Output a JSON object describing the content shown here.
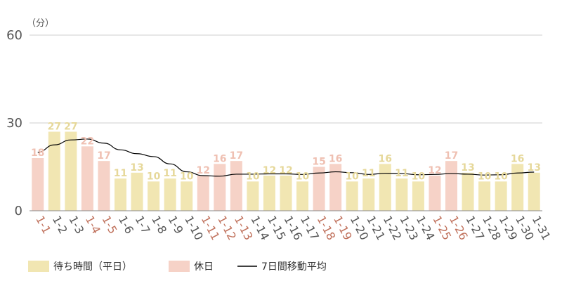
{
  "chart_data": {
    "type": "bar",
    "y_unit": "（分）",
    "ylim": [
      0,
      60
    ],
    "yticks": [
      0,
      30,
      60
    ],
    "grid": true,
    "legend_placement": "bottom-left",
    "categories": [
      "1-1",
      "1-2",
      "1-3",
      "1-4",
      "1-5",
      "1-6",
      "1-7",
      "1-8",
      "1-9",
      "1-10",
      "1-11",
      "1-12",
      "1-13",
      "1-14",
      "1-15",
      "1-16",
      "1-17",
      "1-18",
      "1-19",
      "1-20",
      "1-21",
      "1-22",
      "1-23",
      "1-24",
      "1-25",
      "1-26",
      "1-27",
      "1-28",
      "1-29",
      "1-30",
      "1-31"
    ],
    "series": [
      {
        "name": "待ち時間（平日）",
        "color": "#f1e6b2",
        "label_color": "#e6d89a"
      },
      {
        "name": "休日",
        "color": "#f6d2c7",
        "label_color": "#efc0b2"
      }
    ],
    "values": [
      18,
      27,
      27,
      22,
      17,
      11,
      13,
      10,
      11,
      10,
      12,
      16,
      17,
      10,
      12,
      12,
      10,
      15,
      16,
      10,
      11,
      16,
      11,
      10,
      12,
      17,
      13,
      10,
      10,
      16,
      13
    ],
    "holiday": [
      true,
      false,
      false,
      true,
      true,
      false,
      false,
      false,
      false,
      false,
      true,
      true,
      true,
      false,
      false,
      false,
      false,
      true,
      true,
      false,
      false,
      false,
      false,
      false,
      true,
      true,
      false,
      false,
      false,
      false,
      false
    ],
    "moving_average": {
      "name": "7日間移動平均",
      "color": "#000000",
      "values": [
        20.0,
        22.5,
        24.2,
        24.5,
        23.1,
        20.8,
        19.5,
        18.5,
        16.0,
        13.3,
        12.0,
        11.8,
        12.5,
        12.5,
        12.6,
        12.6,
        12.4,
        12.9,
        13.3,
        13.0,
        12.4,
        12.8,
        12.7,
        12.3,
        12.4,
        12.7,
        12.5,
        12.2,
        12.3,
        12.9,
        13.2
      ]
    },
    "colors": {
      "weekday_tick": "#555555",
      "holiday_tick": "#c0715c",
      "grid": "#cfcfcf"
    }
  }
}
